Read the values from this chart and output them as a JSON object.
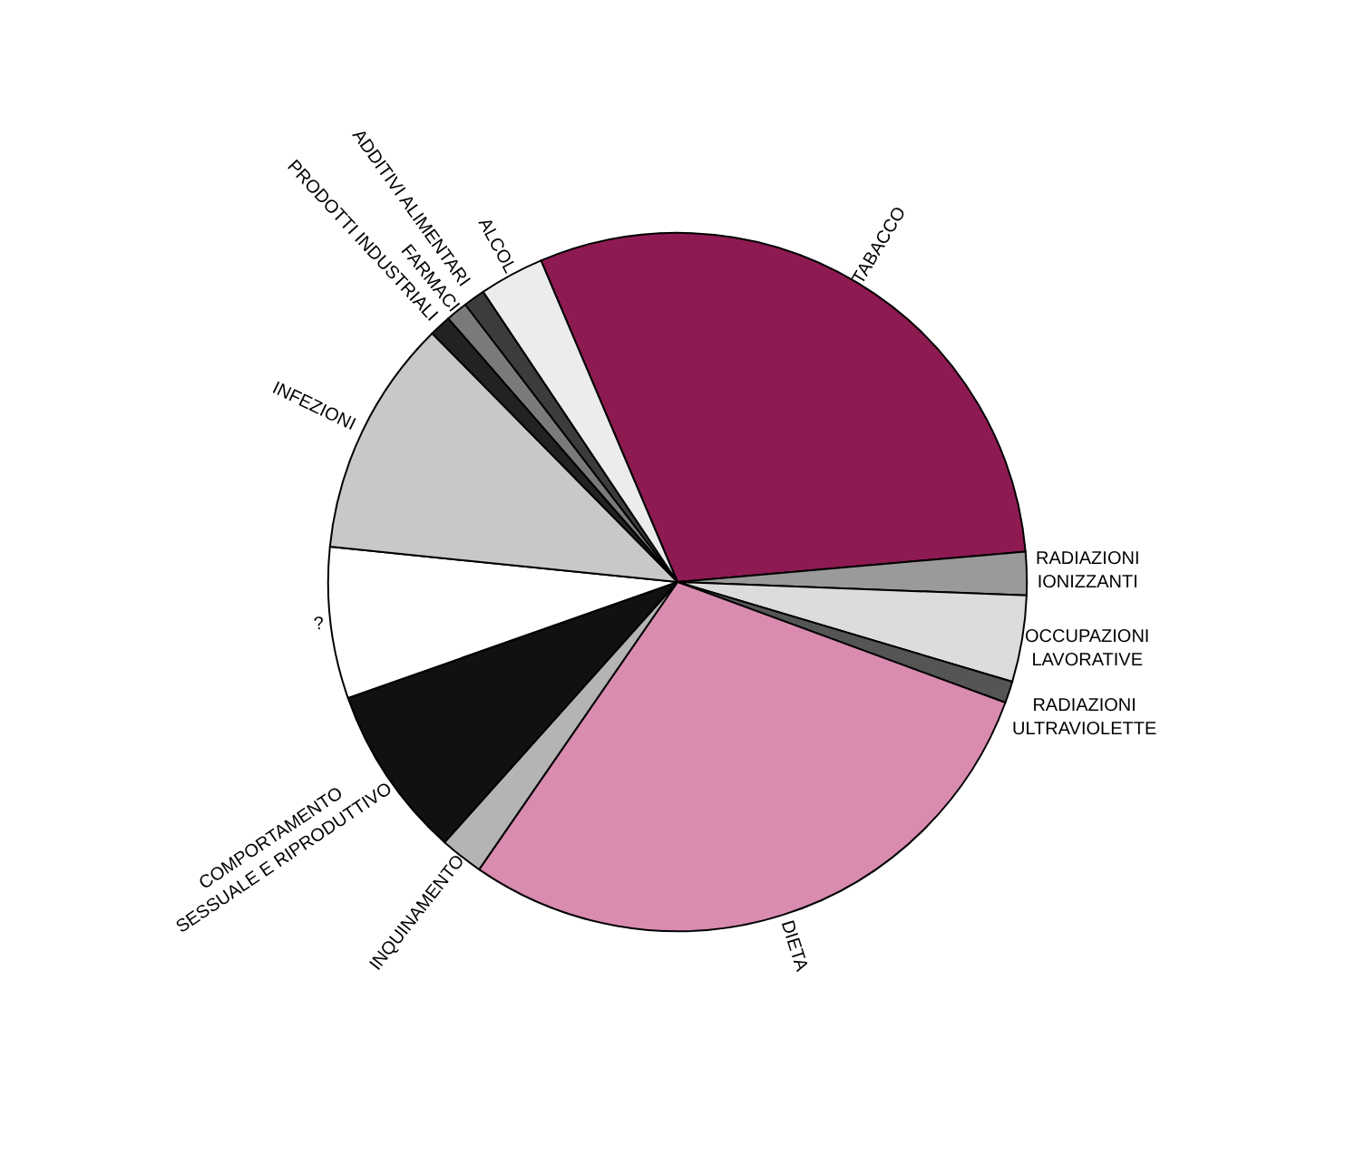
{
  "chart_data": {
    "type": "pie",
    "categories": [
      "TABACCO",
      "RADIAZIONI IONIZZANTI",
      "OCCUPAZIONI LAVORATIVE",
      "RADIAZIONI ULTRAVIOLETTE",
      "DIETA",
      "INQUINAMENTO",
      "COMPORTAMENTO SESSUALE E RIPRODUTTIVO",
      "?",
      "INFEZIONI",
      "PRODOTTI INDUSTRIALI",
      "FARMACI",
      "ADDITIVI ALIMENTARI",
      "ALCOL"
    ],
    "values": [
      30,
      2,
      4,
      1,
      29,
      2,
      8,
      7,
      11,
      1,
      1,
      1,
      3
    ],
    "colors": [
      "#8e1a52",
      "#9a9a9a",
      "#dcdcdc",
      "#555555",
      "#d98bb0",
      "#b4b4b4",
      "#111111",
      "#ffffff",
      "#c8c8c8",
      "#222222",
      "#7a7a7a",
      "#3c3c3c",
      "#ececec"
    ],
    "legend": false
  }
}
